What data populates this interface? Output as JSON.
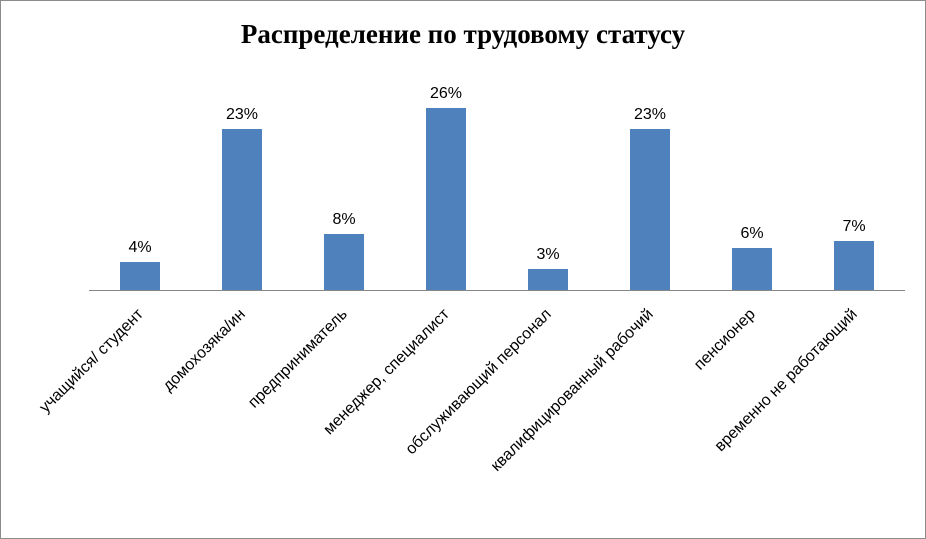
{
  "chart_data": {
    "type": "bar",
    "title": "Распределение по трудовому статусу",
    "categories": [
      "учащийся/ студент",
      "домохозяка/ин",
      "предприниматель",
      "менеджер, специалист",
      "обслуживающий персонал",
      "квалифицированный рабочий",
      "пенсионер",
      "временно не работающий"
    ],
    "values": [
      4,
      23,
      8,
      26,
      3,
      23,
      6,
      7
    ],
    "data_labels": [
      "4%",
      "23%",
      "8%",
      "26%",
      "3%",
      "23%",
      "6%",
      "7%"
    ],
    "xlabel": "",
    "ylabel": "",
    "ylim": [
      0,
      28
    ],
    "grid": false,
    "legend": "none",
    "bar_color": "#4f81bd",
    "axis_color": "#868686"
  }
}
